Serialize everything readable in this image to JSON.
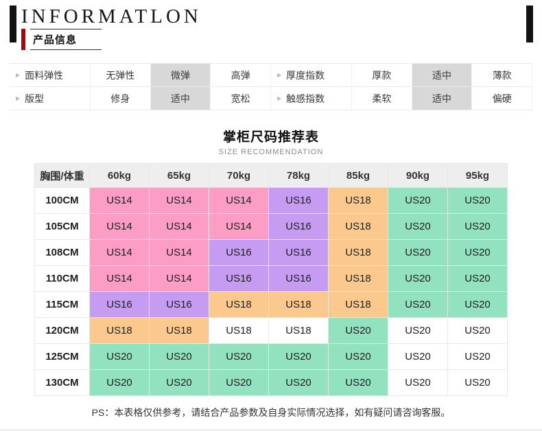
{
  "page": {
    "title_en": "INFORMATLON",
    "section_label": "产品信息"
  },
  "icons": {
    "attribute_marker": "▶"
  },
  "attribute_table": {
    "rows": [
      {
        "groups": [
          {
            "label": "面料弹性",
            "options": [
              "无弹性",
              "微弹",
              "高弹"
            ],
            "selected_index": 1
          },
          {
            "label": "厚度指数",
            "options": [
              "厚款",
              "适中",
              "薄款"
            ],
            "selected_index": 1
          }
        ]
      },
      {
        "groups": [
          {
            "label": "版型",
            "options": [
              "修身",
              "适中",
              "宽松"
            ],
            "selected_index": 1
          },
          {
            "label": "触感指数",
            "options": [
              "柔软",
              "适中",
              "偏硬"
            ],
            "selected_index": 1
          }
        ]
      }
    ]
  },
  "size_table": {
    "title": "掌柜尺码推荐表",
    "subtitle": "SIZE RECOMMENDATION",
    "corner_header": "胸围/体重",
    "column_headers": [
      "60kg",
      "65kg",
      "70kg",
      "78kg",
      "85kg",
      "90kg",
      "95kg"
    ],
    "colors": {
      "pink": "#fb9dc5",
      "purple": "#c59cf2",
      "orange": "#fbc98d",
      "green": "#92e2c0",
      "white": "#ffffff"
    },
    "rows": [
      {
        "label": "100CM",
        "cells": [
          {
            "value": "US14",
            "color": "pink"
          },
          {
            "value": "US14",
            "color": "pink"
          },
          {
            "value": "US14",
            "color": "pink"
          },
          {
            "value": "US16",
            "color": "purple"
          },
          {
            "value": "US18",
            "color": "orange"
          },
          {
            "value": "US20",
            "color": "green"
          },
          {
            "value": "US20",
            "color": "green"
          }
        ]
      },
      {
        "label": "105CM",
        "cells": [
          {
            "value": "US14",
            "color": "pink"
          },
          {
            "value": "US14",
            "color": "pink"
          },
          {
            "value": "US14",
            "color": "pink"
          },
          {
            "value": "US16",
            "color": "purple"
          },
          {
            "value": "US18",
            "color": "orange"
          },
          {
            "value": "US20",
            "color": "green"
          },
          {
            "value": "US20",
            "color": "green"
          }
        ]
      },
      {
        "label": "108CM",
        "cells": [
          {
            "value": "US14",
            "color": "pink"
          },
          {
            "value": "US14",
            "color": "pink"
          },
          {
            "value": "US16",
            "color": "purple"
          },
          {
            "value": "US16",
            "color": "purple"
          },
          {
            "value": "US18",
            "color": "orange"
          },
          {
            "value": "US20",
            "color": "green"
          },
          {
            "value": "US20",
            "color": "green"
          }
        ]
      },
      {
        "label": "110CM",
        "cells": [
          {
            "value": "US14",
            "color": "pink"
          },
          {
            "value": "US14",
            "color": "pink"
          },
          {
            "value": "US16",
            "color": "purple"
          },
          {
            "value": "US16",
            "color": "purple"
          },
          {
            "value": "US18",
            "color": "orange"
          },
          {
            "value": "US20",
            "color": "green"
          },
          {
            "value": "US20",
            "color": "green"
          }
        ]
      },
      {
        "label": "115CM",
        "cells": [
          {
            "value": "US16",
            "color": "purple"
          },
          {
            "value": "US16",
            "color": "purple"
          },
          {
            "value": "US18",
            "color": "orange"
          },
          {
            "value": "US18",
            "color": "orange"
          },
          {
            "value": "US18",
            "color": "orange"
          },
          {
            "value": "US20",
            "color": "green"
          },
          {
            "value": "US20",
            "color": "green"
          }
        ]
      },
      {
        "label": "120CM",
        "cells": [
          {
            "value": "US18",
            "color": "orange"
          },
          {
            "value": "US18",
            "color": "orange"
          },
          {
            "value": "US18",
            "color": "white"
          },
          {
            "value": "US18",
            "color": "white"
          },
          {
            "value": "US20",
            "color": "green"
          },
          {
            "value": "US20",
            "color": "white"
          },
          {
            "value": "US20",
            "color": "white"
          }
        ]
      },
      {
        "label": "125CM",
        "cells": [
          {
            "value": "US20",
            "color": "green"
          },
          {
            "value": "US20",
            "color": "green"
          },
          {
            "value": "US20",
            "color": "green"
          },
          {
            "value": "US20",
            "color": "green"
          },
          {
            "value": "US20",
            "color": "green"
          },
          {
            "value": "US20",
            "color": "white"
          },
          {
            "value": "US20",
            "color": "white"
          }
        ]
      },
      {
        "label": "130CM",
        "cells": [
          {
            "value": "US20",
            "color": "green"
          },
          {
            "value": "US20",
            "color": "green"
          },
          {
            "value": "US20",
            "color": "green"
          },
          {
            "value": "US20",
            "color": "green"
          },
          {
            "value": "US20",
            "color": "green"
          },
          {
            "value": "US20",
            "color": "white"
          },
          {
            "value": "US20",
            "color": "white"
          }
        ]
      }
    ]
  },
  "footer": {
    "note_prefix": "PS：",
    "note": "本表格仅供参考，请结合产品参数及自身实际情况选择，如有疑问请咨询客服。"
  }
}
